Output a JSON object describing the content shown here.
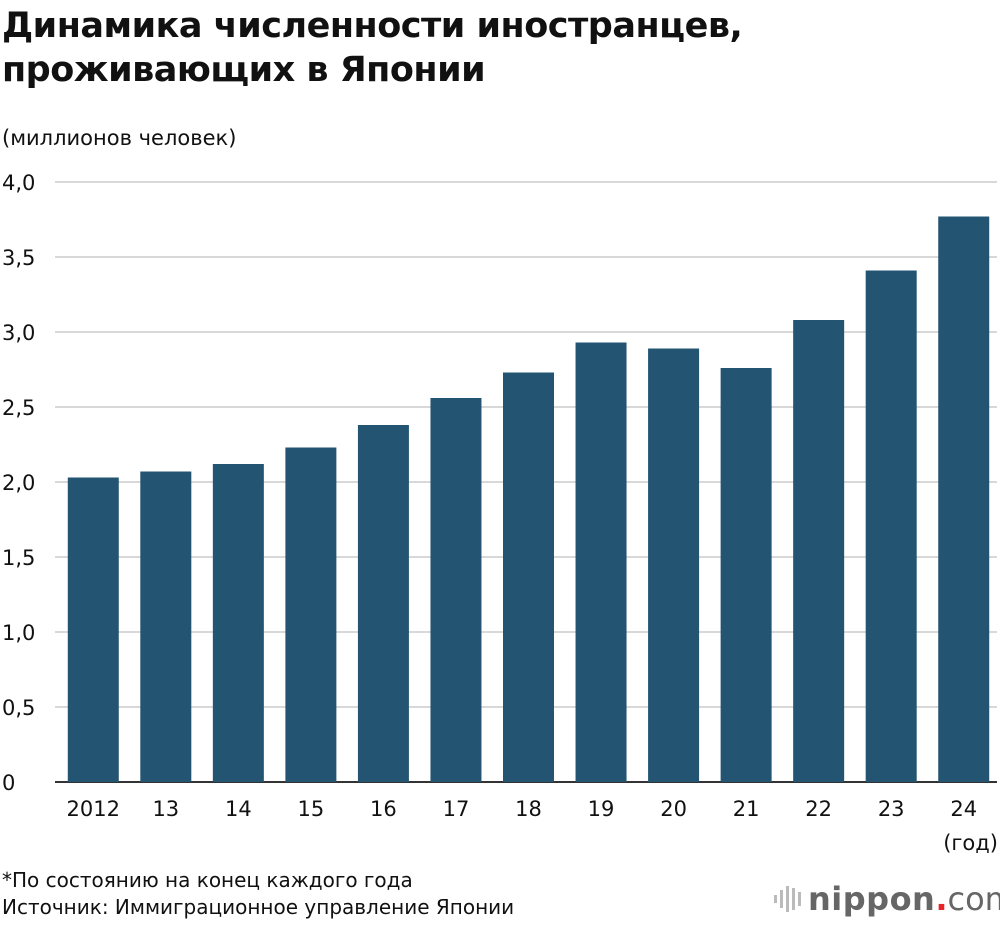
{
  "chart_data": {
    "type": "bar",
    "title": "Динамика численности иностранцев, проживающих в Японии",
    "title_lines": [
      "Динамика численности иностранцев,",
      "проживающих в Японии"
    ],
    "ylabel": "(миллионов человек)",
    "xlabel": "(год)",
    "categories": [
      "2012",
      "13",
      "14",
      "15",
      "16",
      "17",
      "18",
      "19",
      "20",
      "21",
      "22",
      "23",
      "24"
    ],
    "values": [
      2.03,
      2.07,
      2.12,
      2.23,
      2.38,
      2.56,
      2.73,
      2.93,
      2.89,
      2.76,
      3.08,
      3.41,
      3.77
    ],
    "ylim": [
      0,
      4.0
    ],
    "yticks": [
      0,
      0.5,
      1.0,
      1.5,
      2.0,
      2.5,
      3.0,
      3.5,
      4.0
    ],
    "ytick_labels": [
      "0",
      "0,5",
      "1,0",
      "1,5",
      "2,0",
      "2,5",
      "3,0",
      "3,5",
      "4,0"
    ],
    "grid": true,
    "bar_color": "#235573",
    "grid_color": "#cccccc"
  },
  "notes": {
    "footnote": "*По состоянию на конец каждого года",
    "source": "Источник: Иммиграционное управление Японии"
  },
  "logo": {
    "word": "nippon",
    "dot": ".",
    "com": "com",
    "accent": "#e8242b"
  }
}
